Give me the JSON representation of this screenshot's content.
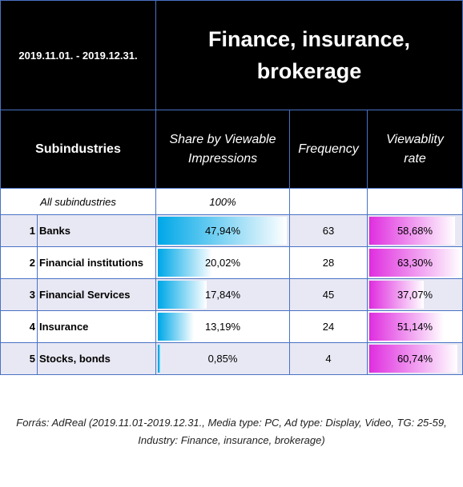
{
  "header": {
    "period": "2019.11.01.  - 2019.12.31.",
    "title": "Finance, insurance, brokerage"
  },
  "columns": {
    "subindustries": "Subindustries",
    "share": "Share by Viewable Impressions",
    "frequency": "Frequency",
    "viewability": "Viewablity rate"
  },
  "summary": {
    "name": "All subindustries",
    "share": "100%"
  },
  "table": {
    "rows": [
      {
        "rank": 1,
        "name": "Banks",
        "share": 47.94,
        "share_label": "47,94%",
        "frequency": 63,
        "viewability": 58.68,
        "viewability_label": "58,68%"
      },
      {
        "rank": 2,
        "name": "Financial institutions",
        "share": 20.02,
        "share_label": "20,02%",
        "frequency": 28,
        "viewability": 63.3,
        "viewability_label": "63,30%"
      },
      {
        "rank": 3,
        "name": "Financial Services",
        "share": 17.84,
        "share_label": "17,84%",
        "frequency": 45,
        "viewability": 37.07,
        "viewability_label": "37,07%"
      },
      {
        "rank": 4,
        "name": "Insurance",
        "share": 13.19,
        "share_label": "13,19%",
        "frequency": 24,
        "viewability": 51.14,
        "viewability_label": "51,14%"
      },
      {
        "rank": 5,
        "name": "Stocks, bonds",
        "share": 0.85,
        "share_label": "0,85%",
        "frequency": 4,
        "viewability": 60.74,
        "viewability_label": "60,74%"
      }
    ]
  },
  "footer": {
    "source": "Forrás: AdReal (2019.11.01-2019.12.31., Media type: PC, Ad type: Display, Video, TG: 25-59, Industry: Finance, insurance, brokerage)"
  }
}
